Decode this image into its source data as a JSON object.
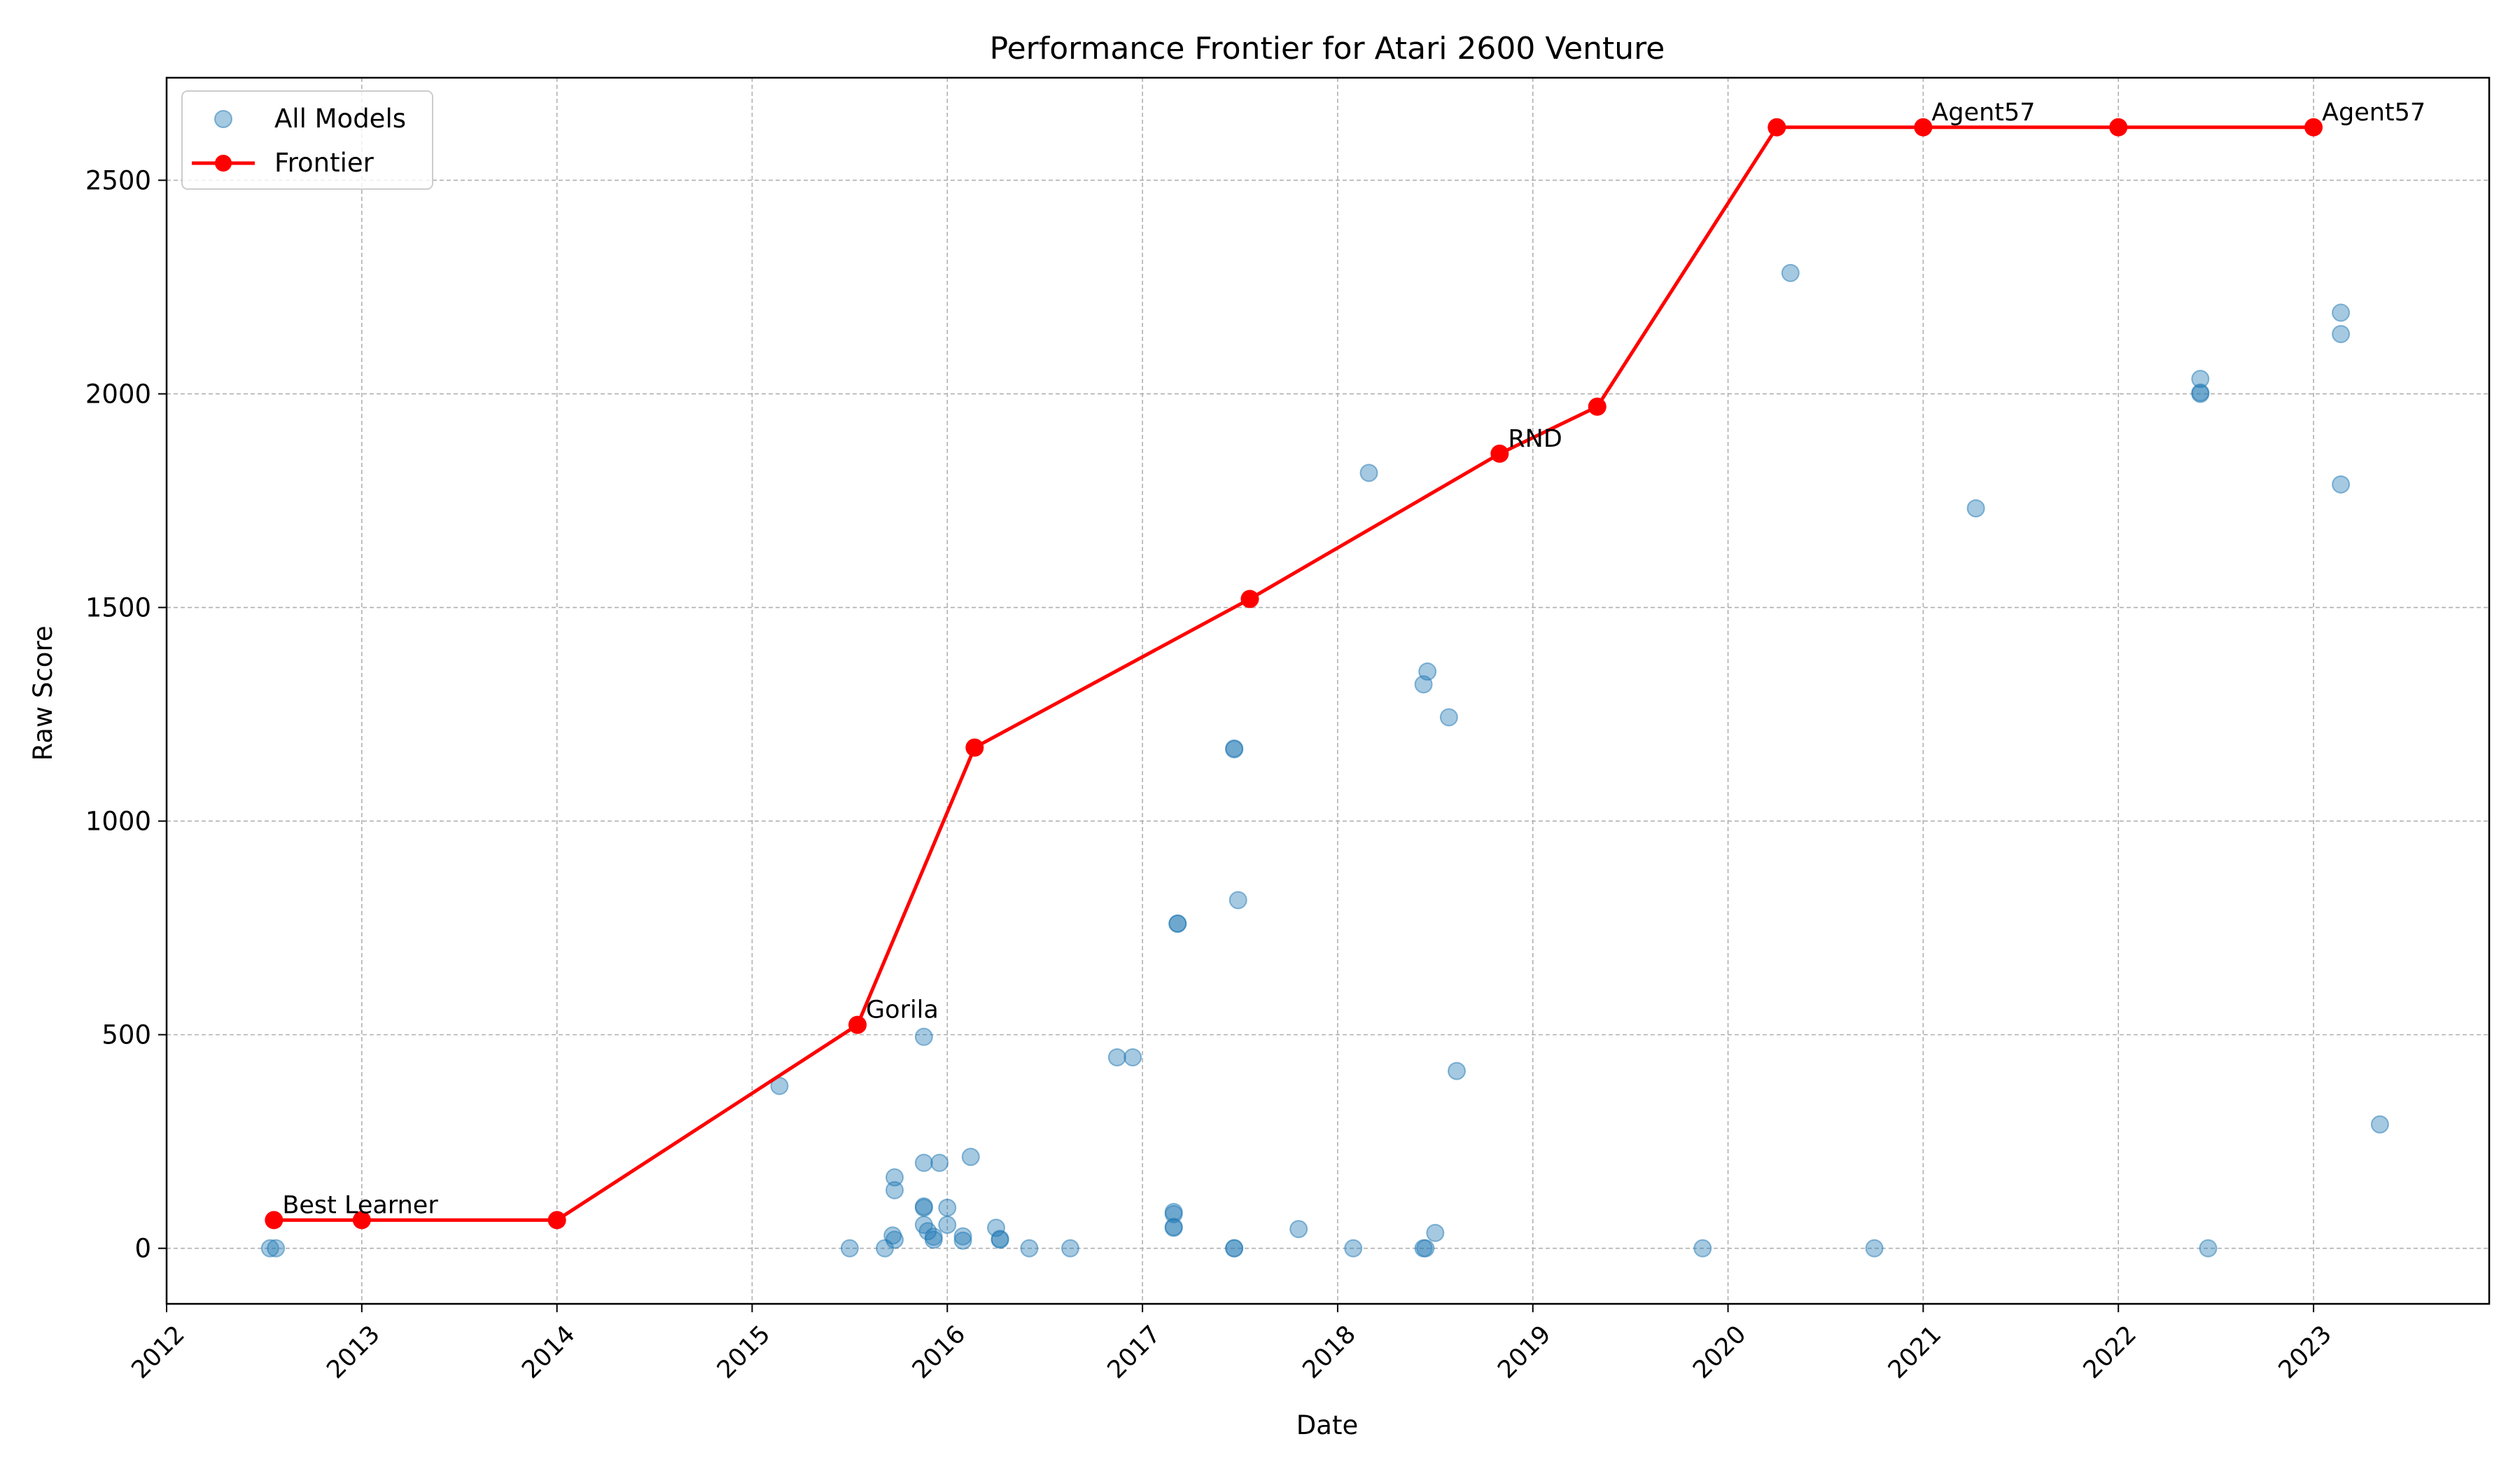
{
  "chart_data": {
    "type": "scatter",
    "title": "Performance Frontier for Atari 2600 Venture",
    "xlabel": "Date",
    "ylabel": "Raw Score",
    "xlim": [
      2012.0,
      2023.9
    ],
    "ylim": [
      -130,
      2740
    ],
    "x_ticks": [
      2012,
      2013,
      2014,
      2015,
      2016,
      2017,
      2018,
      2019,
      2020,
      2021,
      2022,
      2023
    ],
    "x_tick_labels": [
      "2012",
      "2013",
      "2014",
      "2015",
      "2016",
      "2017",
      "2018",
      "2019",
      "2020",
      "2021",
      "2022",
      "2023"
    ],
    "y_ticks": [
      0,
      500,
      1000,
      1500,
      2000,
      2500
    ],
    "y_tick_labels": [
      "0",
      "500",
      "1000",
      "1500",
      "2000",
      "2500"
    ],
    "grid": true,
    "legend_position": "top-left",
    "colors": {
      "scatter": "#1f77b4",
      "frontier": "#ff0000"
    },
    "series": [
      {
        "name": "All Models",
        "type": "scatter",
        "points": [
          [
            2012.53,
            0
          ],
          [
            2012.56,
            0
          ],
          [
            2015.14,
            380
          ],
          [
            2015.5,
            0
          ],
          [
            2015.68,
            0
          ],
          [
            2015.72,
            30
          ],
          [
            2015.73,
            20
          ],
          [
            2015.73,
            166
          ],
          [
            2015.73,
            136
          ],
          [
            2015.88,
            200
          ],
          [
            2015.88,
            98
          ],
          [
            2015.88,
            95
          ],
          [
            2015.88,
            55
          ],
          [
            2015.88,
            495
          ],
          [
            2015.9,
            40
          ],
          [
            2015.93,
            20
          ],
          [
            2015.93,
            27
          ],
          [
            2015.96,
            200
          ],
          [
            2016.0,
            95
          ],
          [
            2016.0,
            55
          ],
          [
            2016.08,
            28
          ],
          [
            2016.08,
            18
          ],
          [
            2016.12,
            214
          ],
          [
            2016.25,
            48
          ],
          [
            2016.27,
            22
          ],
          [
            2016.27,
            20
          ],
          [
            2016.42,
            0
          ],
          [
            2016.63,
            0
          ],
          [
            2016.87,
            447
          ],
          [
            2016.95,
            447
          ],
          [
            2017.16,
            85
          ],
          [
            2017.16,
            80
          ],
          [
            2017.16,
            50
          ],
          [
            2017.16,
            48
          ],
          [
            2017.18,
            760
          ],
          [
            2017.18,
            760
          ],
          [
            2017.47,
            1170
          ],
          [
            2017.47,
            1168
          ],
          [
            2017.47,
            0
          ],
          [
            2017.47,
            0
          ],
          [
            2017.49,
            815
          ],
          [
            2017.8,
            45
          ],
          [
            2018.08,
            0
          ],
          [
            2018.16,
            1815
          ],
          [
            2018.44,
            1320
          ],
          [
            2018.44,
            0
          ],
          [
            2018.45,
            0
          ],
          [
            2018.46,
            1350
          ],
          [
            2018.5,
            36
          ],
          [
            2018.57,
            1243
          ],
          [
            2018.61,
            415
          ],
          [
            2019.87,
            0
          ],
          [
            2020.32,
            2283
          ],
          [
            2020.75,
            0
          ],
          [
            2021.27,
            1732
          ],
          [
            2022.42,
            2035
          ],
          [
            2022.42,
            2003
          ],
          [
            2022.42,
            2000
          ],
          [
            2022.46,
            0
          ],
          [
            2023.14,
            2190
          ],
          [
            2023.14,
            2140
          ],
          [
            2023.14,
            1788
          ],
          [
            2023.34,
            290
          ]
        ]
      },
      {
        "name": "Frontier",
        "type": "line",
        "points": [
          [
            2012.55,
            66
          ],
          [
            2013.0,
            66
          ],
          [
            2014.0,
            66
          ],
          [
            2015.54,
            523
          ],
          [
            2016.14,
            1172
          ],
          [
            2017.55,
            1520
          ],
          [
            2018.83,
            1860
          ],
          [
            2019.33,
            1970
          ],
          [
            2020.25,
            2624
          ],
          [
            2021.0,
            2624
          ],
          [
            2022.0,
            2624
          ],
          [
            2023.0,
            2624
          ]
        ]
      }
    ],
    "annotations": [
      {
        "text": "Best Learner",
        "x": 2012.55,
        "y": 66
      },
      {
        "text": "Gorila",
        "x": 2015.54,
        "y": 523
      },
      {
        "text": "RND",
        "x": 2018.83,
        "y": 1860
      },
      {
        "text": "Agent57",
        "x": 2021.0,
        "y": 2624
      },
      {
        "text": "Agent57",
        "x": 2023.0,
        "y": 2624
      }
    ]
  }
}
